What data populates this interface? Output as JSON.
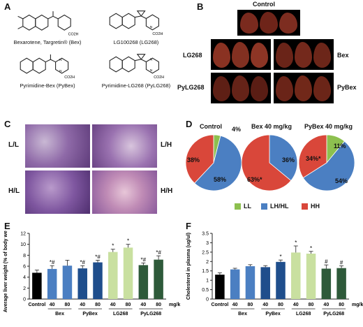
{
  "panels": {
    "A": "A",
    "B": "B",
    "C": "C",
    "D": "D",
    "E": "E",
    "F": "F"
  },
  "chemicals": [
    {
      "name_line": "Bexarotene, Targretin® (Bex)"
    },
    {
      "name_line": "LG100268 (LG268)"
    },
    {
      "name_line": "Pyrimidine-Bex (PyBex)"
    },
    {
      "name_line": "Pyrimidine-LG268 (PyLG268)"
    }
  ],
  "chem_atoms": {
    "co2h": "CO2H",
    "n": "N"
  },
  "livers": {
    "control": "Control",
    "lg268": "LG268",
    "bex": "Bex",
    "pylg268": "PyLG268",
    "pybex": "PyBex"
  },
  "histology": {
    "ll": "L/L",
    "lh": "L/H",
    "hl": "H/L",
    "hh": "H/H"
  },
  "pies": {
    "titles": [
      "Control",
      "Bex 40 mg/kg",
      "PyBex 40 mg/kg"
    ],
    "labels": {
      "c_ll": "4%",
      "c_lh": "58%",
      "c_hh": "38%",
      "b_lh": "36%",
      "b_hh": "63%*",
      "p_ll": "11%",
      "p_lh": "54%",
      "p_hh": "34%*"
    },
    "legend": [
      "LL",
      "LH/HL",
      "HH"
    ],
    "colors": {
      "LL": "#8dc04f",
      "LH": "#4b7fc2",
      "HH": "#d9473a"
    }
  },
  "chart_data": [
    {
      "type": "bar",
      "ylabel": "Average liver weight (% of body weight)",
      "ylim": [
        0,
        12
      ],
      "yticks": [
        "0",
        "2",
        "4",
        "6",
        "8",
        "10",
        "12"
      ],
      "categories": [
        "Control",
        "40",
        "80",
        "40",
        "80",
        "40",
        "80",
        "40",
        "80"
      ],
      "groups": [
        "Bex",
        "PyBex",
        "LG268",
        "PyLG268"
      ],
      "unit": "mg/kg",
      "values": [
        4.8,
        5.5,
        6.1,
        5.6,
        6.7,
        8.6,
        9.4,
        6.2,
        7.2
      ],
      "errors": [
        0.5,
        0.6,
        1.0,
        0.5,
        0.4,
        0.5,
        0.6,
        0.4,
        0.7
      ],
      "annotations": [
        "",
        "*#",
        "",
        "*#",
        "*#",
        "*",
        "*",
        "*#",
        "*#"
      ],
      "colors": [
        "#000000",
        "#4b7fc2",
        "#4b7fc2",
        "#1f4e8c",
        "#1f4e8c",
        "#c9e0a0",
        "#c9e0a0",
        "#2e5a3a",
        "#2e5a3a"
      ]
    },
    {
      "type": "bar",
      "ylabel": "Cholesterol in plasma (ug/ul)",
      "ylim": [
        0,
        3.5
      ],
      "yticks": [
        "0",
        "0.5",
        "1",
        "1.5",
        "2",
        "2.5",
        "3",
        "3.5"
      ],
      "categories": [
        "Control",
        "40",
        "80",
        "40",
        "80",
        "40",
        "80",
        "40",
        "80"
      ],
      "groups": [
        "Bex",
        "PyBex",
        "LG268",
        "PyLG268"
      ],
      "unit": "mg/kg",
      "values": [
        1.3,
        1.58,
        1.75,
        1.7,
        1.98,
        2.48,
        2.42,
        1.62,
        1.65
      ],
      "errors": [
        0.1,
        0.06,
        0.08,
        0.08,
        0.1,
        0.35,
        0.12,
        0.2,
        0.12
      ],
      "annotations": [
        "",
        "",
        "",
        "",
        "*",
        "*",
        "*",
        "#",
        "#"
      ],
      "colors": [
        "#000000",
        "#4b7fc2",
        "#4b7fc2",
        "#1f4e8c",
        "#1f4e8c",
        "#c9e0a0",
        "#c9e0a0",
        "#2e5a3a",
        "#2e5a3a"
      ]
    }
  ]
}
